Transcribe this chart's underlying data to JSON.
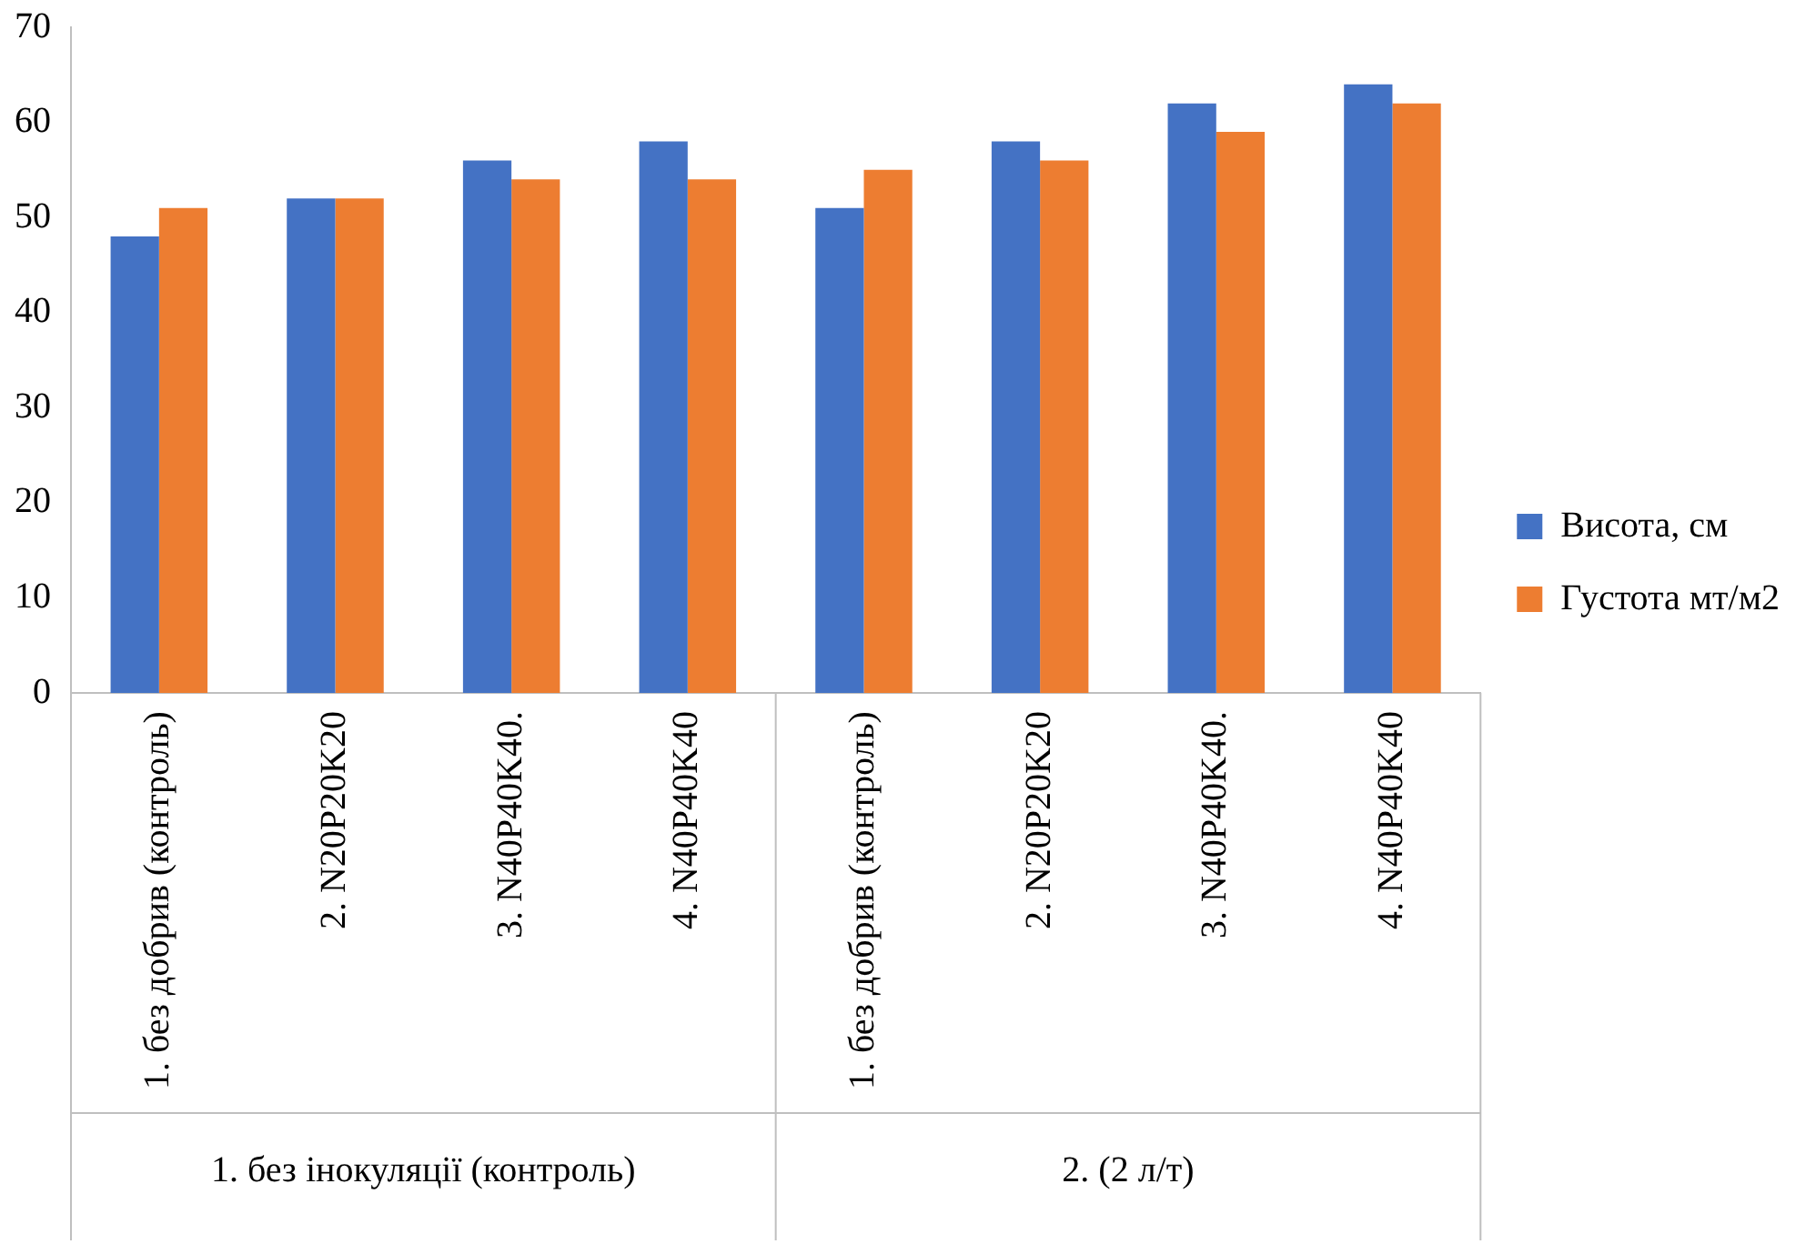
{
  "chart_data": {
    "type": "bar",
    "categories": [
      "1. без добрив (контроль)",
      "2. N20P20K20",
      "3. N40P40K40.",
      "4. N40P40K40",
      "1. без добрив (контроль)",
      "2. N20P20K20",
      "3. N40P40K40.",
      "4. N40P40K40"
    ],
    "series": [
      {
        "name": "Висота, см",
        "color": "#4472c4",
        "values": [
          48,
          52,
          56,
          58,
          51,
          58,
          62,
          64
        ]
      },
      {
        "name": "Густота мт/м2",
        "color": "#ed7d31",
        "values": [
          51,
          52,
          54,
          54,
          55,
          56,
          59,
          62
        ]
      }
    ],
    "ylim": [
      0,
      70
    ],
    "yticks": [
      0,
      10,
      20,
      30,
      40,
      50,
      60,
      70
    ],
    "grid": false,
    "legend": "right",
    "annotations": [
      "1. без інокуляції (контроль)",
      "2. (2 л/т)"
    ]
  }
}
